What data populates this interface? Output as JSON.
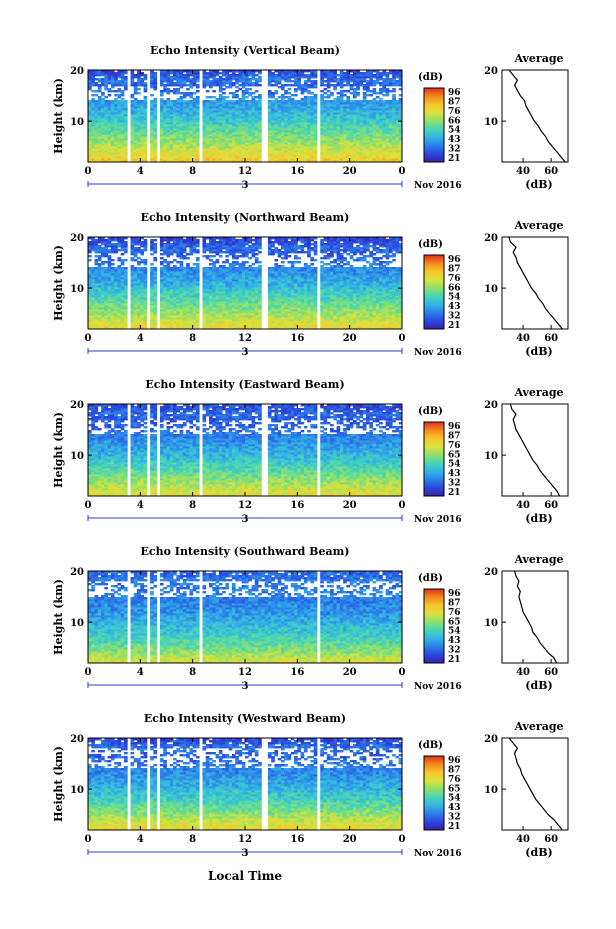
{
  "figure": {
    "x_axis_label": "Local Time",
    "date_label": "Nov 2016",
    "day_label": "3",
    "colorbar_unit": "(dB)",
    "colorbar_ticks": [
      "96",
      "87",
      "76",
      "66",
      "54",
      "43",
      "32",
      "21"
    ],
    "height_axis_label": "Height (km)",
    "average_title": "Average",
    "average_xlabel": "(dB)",
    "x_tick_labels": [
      "0",
      "4",
      "8",
      "12",
      "16",
      "20",
      "0"
    ],
    "colorscale": [
      "#3b1fa6",
      "#2a48e0",
      "#2c7fe8",
      "#33b5e5",
      "#47d6b5",
      "#8fe06a",
      "#d9e23d",
      "#f7c62c",
      "#f28a1e",
      "#e0301c"
    ]
  },
  "chart_data": [
    {
      "type": "heatmap",
      "title": "Echo Intensity (Vertical Beam)",
      "ylabel": "Height (km)",
      "xlabel": "Local Time",
      "xlim": [
        0,
        24
      ],
      "ylim": [
        2,
        20
      ],
      "x_ticks": [
        0,
        4,
        8,
        12,
        16,
        20,
        24
      ],
      "y_ticks": [
        10,
        20
      ],
      "colorbar": {
        "unit": "(dB)",
        "ticks": [
          96,
          87,
          76,
          66,
          54,
          43,
          32,
          21
        ]
      },
      "data_gaps_hours": [
        [
          3.0,
          3.3
        ],
        [
          4.4,
          4.7
        ],
        [
          5.2,
          5.5
        ],
        [
          8.5,
          8.8
        ],
        [
          13.3,
          13.7
        ],
        [
          17.6,
          17.8
        ]
      ],
      "noise_band_km": [
        14,
        17
      ],
      "average_profile": {
        "title": "Average",
        "xlabel": "(dB)",
        "x_ticks": [
          40,
          60
        ],
        "y_ticks": [
          10,
          20
        ],
        "ylim": [
          2,
          20
        ],
        "height_km": [
          2,
          3,
          4,
          5,
          6,
          7,
          8,
          9,
          10,
          11,
          12,
          13,
          14,
          15,
          16,
          17,
          18,
          19,
          20
        ],
        "intensity_db": [
          70,
          67,
          64,
          61,
          58,
          56,
          53,
          51,
          48,
          46,
          44,
          42,
          41,
          38,
          36,
          34,
          36,
          33,
          30
        ]
      }
    },
    {
      "type": "heatmap",
      "title": "Echo Intensity (Northward Beam)",
      "ylabel": "Height (km)",
      "xlabel": "Local Time",
      "xlim": [
        0,
        24
      ],
      "ylim": [
        2,
        20
      ],
      "x_ticks": [
        0,
        4,
        8,
        12,
        16,
        20,
        24
      ],
      "y_ticks": [
        10,
        20
      ],
      "colorbar": {
        "unit": "(dB)",
        "ticks": [
          96,
          87,
          76,
          66,
          54,
          43,
          32,
          21
        ]
      },
      "data_gaps_hours": [
        [
          3.0,
          3.3
        ],
        [
          4.4,
          4.7
        ],
        [
          5.2,
          5.5
        ],
        [
          8.5,
          8.8
        ],
        [
          13.3,
          13.7
        ],
        [
          17.6,
          17.8
        ]
      ],
      "noise_band_km": [
        14,
        17
      ],
      "average_profile": {
        "title": "Average",
        "xlabel": "(dB)",
        "x_ticks": [
          40,
          60
        ],
        "y_ticks": [
          10,
          20
        ],
        "ylim": [
          2,
          20
        ],
        "height_km": [
          2,
          3,
          4,
          5,
          6,
          7,
          8,
          9,
          10,
          11,
          12,
          13,
          14,
          15,
          16,
          17,
          18,
          19,
          20
        ],
        "intensity_db": [
          68,
          65,
          62,
          59,
          56,
          54,
          51,
          49,
          46,
          44,
          42,
          40,
          38,
          36,
          35,
          33,
          35,
          31,
          30
        ]
      }
    },
    {
      "type": "heatmap",
      "title": "Echo Intensity (Eastward Beam)",
      "ylabel": "Height (km)",
      "xlabel": "Local Time",
      "xlim": [
        0,
        24
      ],
      "ylim": [
        2,
        20
      ],
      "x_ticks": [
        0,
        4,
        8,
        12,
        16,
        20,
        24
      ],
      "y_ticks": [
        10,
        20
      ],
      "colorbar": {
        "unit": "(dB)",
        "ticks": [
          96,
          87,
          76,
          65,
          54,
          43,
          32,
          21
        ]
      },
      "data_gaps_hours": [
        [
          3.0,
          3.3
        ],
        [
          4.4,
          4.7
        ],
        [
          5.2,
          5.5
        ],
        [
          8.5,
          8.8
        ],
        [
          13.3,
          13.7
        ],
        [
          17.6,
          17.8
        ]
      ],
      "noise_band_km": [
        14,
        17
      ],
      "average_profile": {
        "title": "Average",
        "xlabel": "(dB)",
        "x_ticks": [
          40,
          60
        ],
        "y_ticks": [
          10,
          20
        ],
        "ylim": [
          2,
          20
        ],
        "height_km": [
          2,
          3,
          4,
          5,
          6,
          7,
          8,
          9,
          10,
          11,
          12,
          13,
          14,
          15,
          16,
          17,
          18,
          19,
          20
        ],
        "intensity_db": [
          66,
          64,
          61,
          58,
          55,
          52,
          50,
          47,
          45,
          43,
          41,
          39,
          37,
          35,
          34,
          33,
          35,
          32,
          31
        ]
      }
    },
    {
      "type": "heatmap",
      "title": "Echo Intensity (Southward Beam)",
      "ylabel": "Height (km)",
      "xlabel": "Local Time",
      "xlim": [
        0,
        24
      ],
      "ylim": [
        2,
        20
      ],
      "x_ticks": [
        0,
        4,
        8,
        12,
        16,
        20,
        24
      ],
      "y_ticks": [
        10,
        20
      ],
      "colorbar": {
        "unit": "(dB)",
        "ticks": [
          96,
          87,
          76,
          65,
          54,
          43,
          32,
          21
        ]
      },
      "data_gaps_hours": [
        [
          3.0,
          3.3
        ],
        [
          4.4,
          4.7
        ],
        [
          5.2,
          5.5
        ],
        [
          8.5,
          8.8
        ],
        [
          17.6,
          17.8
        ]
      ],
      "noise_band_km": [
        15,
        18
      ],
      "average_profile": {
        "title": "Average",
        "xlabel": "(dB)",
        "x_ticks": [
          40,
          60
        ],
        "y_ticks": [
          10,
          20
        ],
        "ylim": [
          2,
          20
        ],
        "height_km": [
          2,
          3,
          4,
          5,
          6,
          7,
          8,
          9,
          10,
          11,
          12,
          13,
          14,
          15,
          16,
          17,
          18,
          19,
          20
        ],
        "intensity_db": [
          64,
          62,
          58,
          55,
          52,
          50,
          47,
          46,
          44,
          42,
          40,
          39,
          38,
          37,
          38,
          36,
          37,
          35,
          34
        ]
      }
    },
    {
      "type": "heatmap",
      "title": "Echo Intensity (Westward Beam)",
      "ylabel": "Height (km)",
      "xlabel": "Local Time",
      "xlim": [
        0,
        24
      ],
      "ylim": [
        2,
        20
      ],
      "x_ticks": [
        0,
        4,
        8,
        12,
        16,
        20,
        24
      ],
      "y_ticks": [
        10,
        20
      ],
      "colorbar": {
        "unit": "(dB)",
        "ticks": [
          96,
          87,
          76,
          65,
          54,
          43,
          32,
          21
        ]
      },
      "data_gaps_hours": [
        [
          3.0,
          3.3
        ],
        [
          4.4,
          4.7
        ],
        [
          5.2,
          5.5
        ],
        [
          8.5,
          8.8
        ],
        [
          13.3,
          13.7
        ],
        [
          17.6,
          17.8
        ]
      ],
      "noise_band_km": [
        14,
        18
      ],
      "average_profile": {
        "title": "Average",
        "xlabel": "(dB)",
        "x_ticks": [
          40,
          60
        ],
        "y_ticks": [
          10,
          20
        ],
        "ylim": [
          2,
          20
        ],
        "height_km": [
          2,
          3,
          4,
          5,
          6,
          7,
          8,
          9,
          10,
          11,
          12,
          13,
          14,
          15,
          16,
          17,
          18,
          19,
          20
        ],
        "intensity_db": [
          68,
          65,
          62,
          58,
          55,
          52,
          49,
          47,
          45,
          43,
          41,
          39,
          38,
          36,
          35,
          34,
          36,
          33,
          30
        ]
      }
    }
  ]
}
